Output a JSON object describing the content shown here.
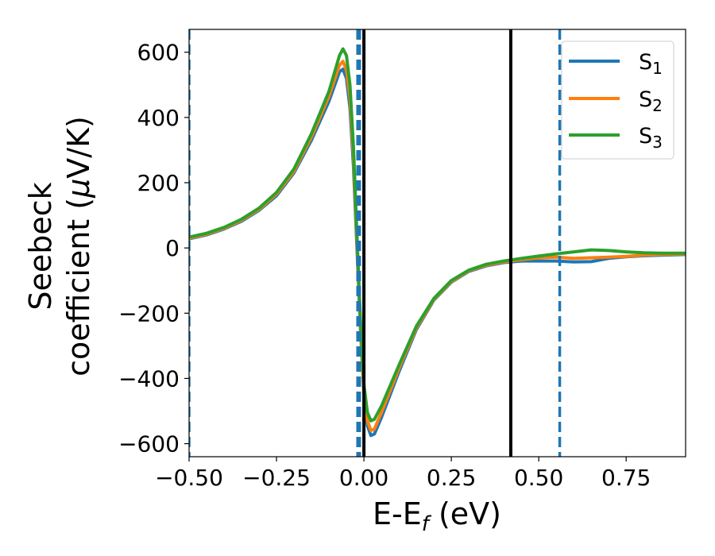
{
  "chart_data": {
    "type": "line",
    "xlabel": {
      "main": "E-E",
      "sub": "f",
      "unit": " (eV)"
    },
    "ylabel": {
      "line1": "Seebeck",
      "line2_pre": "coefficient  (",
      "line2_mu": "μ",
      "line2_post": "V/K)"
    },
    "xlim": [
      -0.5,
      0.92
    ],
    "ylim": [
      -640,
      670
    ],
    "xticks": [
      -0.5,
      -0.25,
      0.0,
      0.25,
      0.5,
      0.75
    ],
    "xtick_labels": [
      "−0.50",
      "−0.25",
      "0.00",
      "0.25",
      "0.50",
      "0.75"
    ],
    "yticks": [
      600,
      400,
      200,
      0,
      -200,
      -400,
      -600
    ],
    "ytick_labels": [
      "600",
      "400",
      "200",
      "0",
      "−200",
      "−400",
      "−600"
    ],
    "grid": false,
    "legend_position": "top-right",
    "colors": {
      "s1": "#1f77b4",
      "s2": "#ff7f0e",
      "s3": "#2ca02c",
      "black": "#000000"
    },
    "series": [
      {
        "name": "S",
        "sub": "1",
        "color": "#1f77b4",
        "points": [
          [
            -0.5,
            28
          ],
          [
            -0.45,
            40
          ],
          [
            -0.4,
            58
          ],
          [
            -0.35,
            82
          ],
          [
            -0.3,
            115
          ],
          [
            -0.25,
            160
          ],
          [
            -0.2,
            230
          ],
          [
            -0.15,
            330
          ],
          [
            -0.1,
            450
          ],
          [
            -0.07,
            540
          ],
          [
            -0.06,
            548
          ],
          [
            -0.05,
            520
          ],
          [
            -0.04,
            430
          ],
          [
            -0.03,
            250
          ],
          [
            -0.02,
            0
          ],
          [
            -0.01,
            -250
          ],
          [
            0.0,
            -450
          ],
          [
            0.01,
            -545
          ],
          [
            0.02,
            -575
          ],
          [
            0.03,
            -570
          ],
          [
            0.05,
            -520
          ],
          [
            0.1,
            -380
          ],
          [
            0.15,
            -250
          ],
          [
            0.2,
            -160
          ],
          [
            0.25,
            -105
          ],
          [
            0.3,
            -72
          ],
          [
            0.35,
            -55
          ],
          [
            0.4,
            -45
          ],
          [
            0.45,
            -40
          ],
          [
            0.5,
            -40
          ],
          [
            0.55,
            -40
          ],
          [
            0.6,
            -43
          ],
          [
            0.65,
            -42
          ],
          [
            0.7,
            -32
          ],
          [
            0.75,
            -27
          ],
          [
            0.8,
            -24
          ],
          [
            0.85,
            -22
          ],
          [
            0.92,
            -20
          ]
        ]
      },
      {
        "name": "S",
        "sub": "2",
        "color": "#ff7f0e",
        "points": [
          [
            -0.5,
            30
          ],
          [
            -0.45,
            42
          ],
          [
            -0.4,
            60
          ],
          [
            -0.35,
            85
          ],
          [
            -0.3,
            118
          ],
          [
            -0.25,
            165
          ],
          [
            -0.2,
            235
          ],
          [
            -0.15,
            340
          ],
          [
            -0.1,
            465
          ],
          [
            -0.07,
            560
          ],
          [
            -0.06,
            572
          ],
          [
            -0.05,
            545
          ],
          [
            -0.04,
            460
          ],
          [
            -0.03,
            280
          ],
          [
            -0.02,
            20
          ],
          [
            -0.01,
            -240
          ],
          [
            0.0,
            -440
          ],
          [
            0.01,
            -530
          ],
          [
            0.02,
            -560
          ],
          [
            0.03,
            -555
          ],
          [
            0.05,
            -505
          ],
          [
            0.1,
            -370
          ],
          [
            0.15,
            -245
          ],
          [
            0.2,
            -158
          ],
          [
            0.25,
            -103
          ],
          [
            0.3,
            -70
          ],
          [
            0.35,
            -53
          ],
          [
            0.4,
            -43
          ],
          [
            0.45,
            -36
          ],
          [
            0.5,
            -30
          ],
          [
            0.55,
            -28
          ],
          [
            0.6,
            -32
          ],
          [
            0.65,
            -30
          ],
          [
            0.7,
            -28
          ],
          [
            0.75,
            -26
          ],
          [
            0.8,
            -22
          ],
          [
            0.85,
            -20
          ],
          [
            0.92,
            -18
          ]
        ]
      },
      {
        "name": "S",
        "sub": "3",
        "color": "#2ca02c",
        "points": [
          [
            -0.5,
            33
          ],
          [
            -0.45,
            45
          ],
          [
            -0.4,
            63
          ],
          [
            -0.35,
            88
          ],
          [
            -0.3,
            122
          ],
          [
            -0.25,
            170
          ],
          [
            -0.2,
            242
          ],
          [
            -0.15,
            350
          ],
          [
            -0.1,
            480
          ],
          [
            -0.07,
            590
          ],
          [
            -0.06,
            610
          ],
          [
            -0.05,
            590
          ],
          [
            -0.04,
            500
          ],
          [
            -0.03,
            310
          ],
          [
            -0.02,
            40
          ],
          [
            -0.01,
            -220
          ],
          [
            0.0,
            -420
          ],
          [
            0.01,
            -505
          ],
          [
            0.02,
            -530
          ],
          [
            0.03,
            -525
          ],
          [
            0.05,
            -485
          ],
          [
            0.1,
            -360
          ],
          [
            0.15,
            -240
          ],
          [
            0.2,
            -155
          ],
          [
            0.25,
            -100
          ],
          [
            0.3,
            -68
          ],
          [
            0.35,
            -50
          ],
          [
            0.4,
            -40
          ],
          [
            0.45,
            -32
          ],
          [
            0.5,
            -25
          ],
          [
            0.55,
            -18
          ],
          [
            0.6,
            -12
          ],
          [
            0.65,
            -6
          ],
          [
            0.7,
            -8
          ],
          [
            0.75,
            -12
          ],
          [
            0.8,
            -15
          ],
          [
            0.85,
            -16
          ],
          [
            0.92,
            -16
          ]
        ]
      }
    ],
    "vlines": [
      {
        "x": -0.5,
        "style": "dashed",
        "color": "#1f77b4",
        "weight": "thin"
      },
      {
        "x": -0.015,
        "style": "dashed",
        "color": "#1f77b4",
        "weight": "thick"
      },
      {
        "x": 0.0,
        "style": "solid",
        "color": "#000000",
        "weight": "normal"
      },
      {
        "x": 0.42,
        "style": "solid",
        "color": "#000000",
        "weight": "normal"
      },
      {
        "x": 0.56,
        "style": "dashed",
        "color": "#1f77b4",
        "weight": "thin"
      }
    ]
  }
}
